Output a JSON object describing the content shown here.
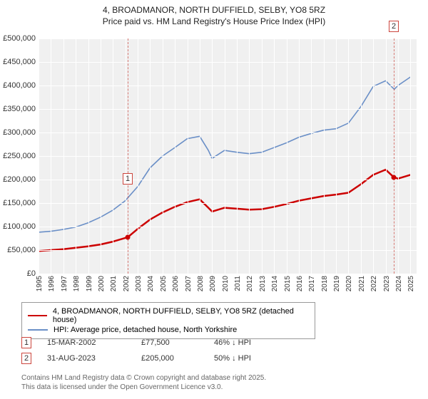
{
  "title": {
    "line1": "4, BROADMANOR, NORTH DUFFIELD, SELBY, YO8 5RZ",
    "line2": "Price paid vs. HM Land Registry's House Price Index (HPI)"
  },
  "chart": {
    "type": "line",
    "background_color": "#f0f0f0",
    "grid_color": "#ffffff",
    "x": {
      "min": 1995,
      "max": 2025.5,
      "ticks": [
        1995,
        1996,
        1997,
        1998,
        1999,
        2000,
        2001,
        2002,
        2003,
        2004,
        2005,
        2006,
        2007,
        2008,
        2009,
        2010,
        2011,
        2012,
        2013,
        2014,
        2015,
        2016,
        2017,
        2018,
        2019,
        2020,
        2021,
        2022,
        2023,
        2024,
        2025
      ]
    },
    "y": {
      "min": 0,
      "max": 500000,
      "ticks": [
        0,
        50000,
        100000,
        150000,
        200000,
        250000,
        300000,
        350000,
        400000,
        450000,
        500000
      ],
      "tick_labels": [
        "£0",
        "£50,000",
        "£100,000",
        "£150,000",
        "£200,000",
        "£250,000",
        "£300,000",
        "£350,000",
        "£400,000",
        "£450,000",
        "£500,000"
      ]
    },
    "series": [
      {
        "name": "4, BROADMANOR, NORTH DUFFIELD, SELBY, YO8 5RZ (detached house)",
        "color": "#cc0000",
        "width": 2.5,
        "points": [
          [
            1995,
            48000
          ],
          [
            1996,
            50000
          ],
          [
            1997,
            52000
          ],
          [
            1998,
            55000
          ],
          [
            1999,
            58000
          ],
          [
            2000,
            62000
          ],
          [
            2001,
            68000
          ],
          [
            2002.2,
            77500
          ],
          [
            2003,
            95000
          ],
          [
            2004,
            115000
          ],
          [
            2005,
            130000
          ],
          [
            2006,
            142000
          ],
          [
            2007,
            152000
          ],
          [
            2008,
            158000
          ],
          [
            2008.7,
            140000
          ],
          [
            2009,
            132000
          ],
          [
            2010,
            140000
          ],
          [
            2011,
            138000
          ],
          [
            2012,
            136000
          ],
          [
            2013,
            137000
          ],
          [
            2014,
            142000
          ],
          [
            2015,
            148000
          ],
          [
            2016,
            155000
          ],
          [
            2017,
            160000
          ],
          [
            2018,
            165000
          ],
          [
            2019,
            168000
          ],
          [
            2020,
            172000
          ],
          [
            2021,
            190000
          ],
          [
            2022,
            210000
          ],
          [
            2023,
            221000
          ],
          [
            2023.66,
            205000
          ],
          [
            2024,
            202000
          ],
          [
            2025,
            210000
          ]
        ]
      },
      {
        "name": "HPI: Average price, detached house, North Yorkshire",
        "color": "#6a8fc7",
        "width": 1.6,
        "points": [
          [
            1995,
            88000
          ],
          [
            1996,
            90000
          ],
          [
            1997,
            94000
          ],
          [
            1998,
            99000
          ],
          [
            1999,
            108000
          ],
          [
            2000,
            120000
          ],
          [
            2001,
            135000
          ],
          [
            2002,
            155000
          ],
          [
            2003,
            185000
          ],
          [
            2004,
            225000
          ],
          [
            2005,
            250000
          ],
          [
            2006,
            268000
          ],
          [
            2007,
            287000
          ],
          [
            2008,
            292000
          ],
          [
            2008.7,
            262000
          ],
          [
            2009,
            245000
          ],
          [
            2010,
            262000
          ],
          [
            2011,
            258000
          ],
          [
            2012,
            255000
          ],
          [
            2013,
            258000
          ],
          [
            2014,
            268000
          ],
          [
            2015,
            278000
          ],
          [
            2016,
            290000
          ],
          [
            2017,
            298000
          ],
          [
            2018,
            305000
          ],
          [
            2019,
            308000
          ],
          [
            2020,
            320000
          ],
          [
            2021,
            355000
          ],
          [
            2022,
            398000
          ],
          [
            2023,
            410000
          ],
          [
            2023.7,
            392000
          ],
          [
            2024,
            400000
          ],
          [
            2025,
            418000
          ]
        ]
      }
    ],
    "markers": [
      {
        "n": "1",
        "x": 2002.2,
        "y": 77500,
        "label_y_offset": -90,
        "point_color": "#cc0000"
      },
      {
        "n": "2",
        "x": 2023.66,
        "y": 205000,
        "label_y_offset": -220,
        "point_color": "#cc0000"
      }
    ]
  },
  "legend": {
    "items": [
      {
        "color": "#cc0000",
        "label": "4, BROADMANOR, NORTH DUFFIELD, SELBY, YO8 5RZ (detached house)"
      },
      {
        "color": "#6a8fc7",
        "label": "HPI: Average price, detached house, North Yorkshire"
      }
    ]
  },
  "transactions": [
    {
      "n": "1",
      "date": "15-MAR-2002",
      "price": "£77,500",
      "pct": "46% ↓ HPI"
    },
    {
      "n": "2",
      "date": "31-AUG-2023",
      "price": "£205,000",
      "pct": "50% ↓ HPI"
    }
  ],
  "footnote": {
    "line1": "Contains HM Land Registry data © Crown copyright and database right 2025.",
    "line2": "This data is licensed under the Open Government Licence v3.0."
  },
  "colors": {
    "marker_border": "#cc463d",
    "text": "#333333",
    "muted": "#666666"
  }
}
